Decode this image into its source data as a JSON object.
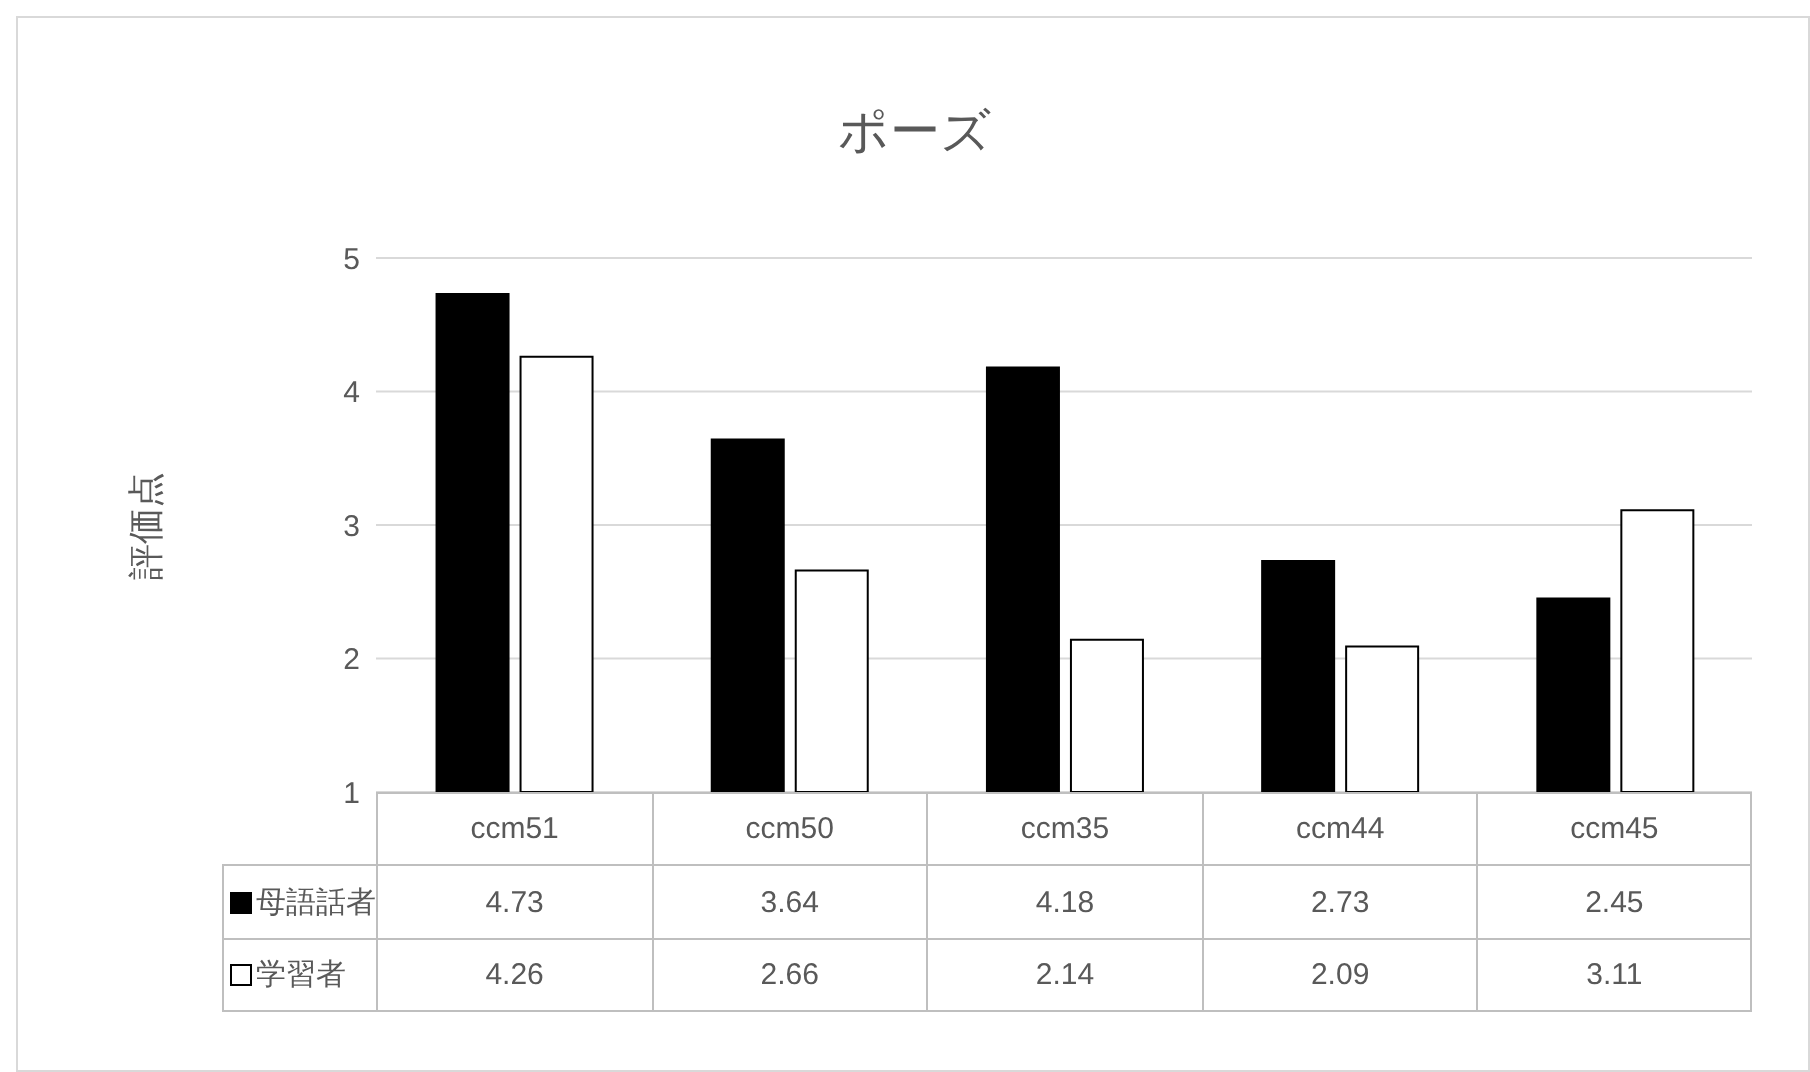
{
  "chart_data": {
    "type": "bar",
    "title": "ポーズ",
    "ylabel": "評価点",
    "categories": [
      "ccm51",
      "ccm50",
      "ccm35",
      "ccm44",
      "ccm45"
    ],
    "series": [
      {
        "name": "母語話者",
        "color": "#000000",
        "values": [
          4.73,
          3.64,
          4.18,
          2.73,
          2.45
        ]
      },
      {
        "name": "学習者",
        "color": "#ffffff",
        "values": [
          4.26,
          2.66,
          2.14,
          2.09,
          3.11
        ]
      }
    ],
    "ylim": [
      1,
      5
    ],
    "yticks": [
      1,
      2,
      3,
      4,
      5
    ],
    "grid": "y",
    "legend": "bottom",
    "data_labels": true
  }
}
